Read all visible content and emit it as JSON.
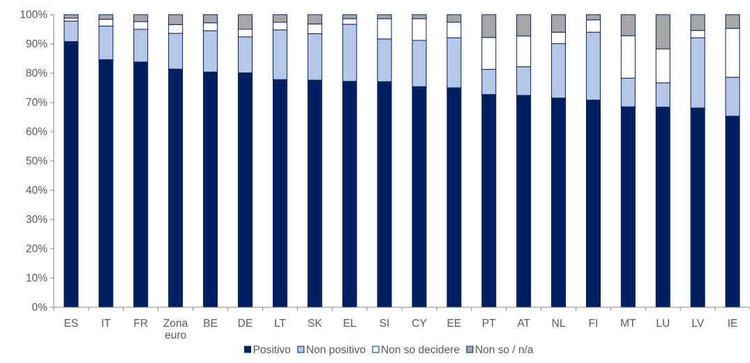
{
  "chart_data": {
    "type": "bar",
    "stacked": true,
    "categories": [
      [
        "ES"
      ],
      [
        "IT"
      ],
      [
        "FR"
      ],
      [
        "Zona",
        "euro"
      ],
      [
        "BE"
      ],
      [
        "DE"
      ],
      [
        "LT"
      ],
      [
        "SK"
      ],
      [
        "EL"
      ],
      [
        "SI"
      ],
      [
        "CY"
      ],
      [
        "EE"
      ],
      [
        "PT"
      ],
      [
        "AT"
      ],
      [
        "NL"
      ],
      [
        "FI"
      ],
      [
        "MT"
      ],
      [
        "LU"
      ],
      [
        "LV"
      ],
      [
        "IE"
      ]
    ],
    "series": [
      {
        "name": "Positivo",
        "color": "#002060",
        "values": [
          90.8,
          84.6,
          83.8,
          81.4,
          80.4,
          80.1,
          77.8,
          77.6,
          77.2,
          77.1,
          75.4,
          75.0,
          72.7,
          72.4,
          71.5,
          70.8,
          68.5,
          68.4,
          68.1,
          65.3
        ]
      },
      {
        "name": "Non positivo",
        "color": "#b4c7e7",
        "values": [
          7.0,
          11.5,
          11.2,
          12.2,
          14.1,
          12.3,
          17.0,
          15.9,
          19.5,
          14.6,
          15.8,
          17.1,
          8.6,
          9.8,
          18.6,
          23.2,
          9.8,
          8.3,
          24.0,
          13.3
        ]
      },
      {
        "name": "Non so decidere",
        "color": "#ffffff",
        "values": [
          1.0,
          2.3,
          2.6,
          3.0,
          2.7,
          2.6,
          2.6,
          3.3,
          1.9,
          6.9,
          7.4,
          5.3,
          10.9,
          10.5,
          3.9,
          4.2,
          14.5,
          11.6,
          2.5,
          16.7
        ]
      },
      {
        "name": "Non so / n/a",
        "color": "#a6a6a6",
        "values": [
          1.2,
          1.6,
          2.4,
          3.4,
          2.8,
          5.0,
          2.6,
          3.2,
          1.4,
          1.4,
          1.4,
          2.6,
          7.8,
          7.3,
          6.0,
          1.8,
          7.2,
          11.7,
          5.4,
          4.7
        ]
      }
    ],
    "y_ticks": [
      "0%",
      "10%",
      "20%",
      "30%",
      "40%",
      "50%",
      "60%",
      "70%",
      "80%",
      "90%",
      "100%"
    ],
    "ylim": [
      0,
      100
    ],
    "grid": false,
    "legend_position": "bottom",
    "title": "",
    "xlabel": "",
    "ylabel": ""
  }
}
